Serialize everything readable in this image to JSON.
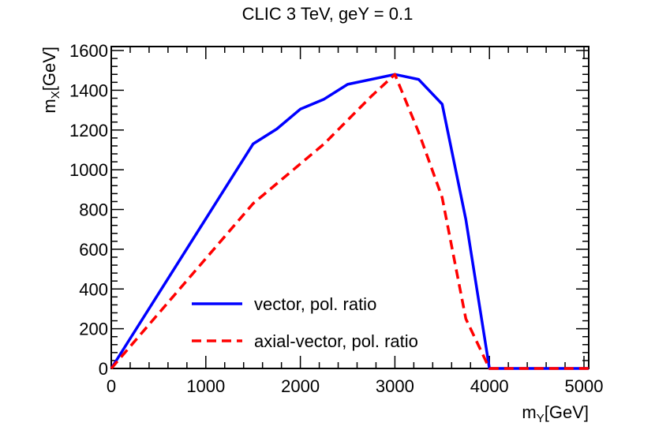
{
  "chart_data": {
    "type": "line",
    "title": "CLIC 3 TeV, geY = 0.1",
    "xlabel": {
      "base": "m",
      "sub": "Y",
      "unit": "[GeV]"
    },
    "ylabel": {
      "base": "m",
      "sub": "X",
      "unit": "[GeV]"
    },
    "xlim": [
      0,
      5050
    ],
    "ylim": [
      0,
      1620
    ],
    "xticks": [
      0,
      1000,
      2000,
      3000,
      4000,
      5000
    ],
    "yticks": [
      0,
      200,
      400,
      600,
      800,
      1000,
      1200,
      1400,
      1600
    ],
    "grid": false,
    "legend_position": "bottom-left",
    "series": [
      {
        "name": "vector, pol. ratio",
        "color": "#0000ff",
        "style": "solid",
        "x": [
          0,
          1500,
          1750,
          2000,
          2250,
          2500,
          3000,
          3250,
          3500,
          3750,
          4000,
          5050
        ],
        "y": [
          0,
          1130,
          1205,
          1305,
          1355,
          1430,
          1480,
          1455,
          1330,
          750,
          0,
          0
        ]
      },
      {
        "name": "axial-vector, pol. ratio",
        "color": "#ff0000",
        "style": "dashed",
        "x": [
          0,
          1500,
          2250,
          2750,
          3000,
          3250,
          3500,
          3750,
          4000,
          5050
        ],
        "y": [
          0,
          830,
          1130,
          1370,
          1480,
          1190,
          860,
          250,
          0,
          0
        ]
      }
    ]
  }
}
